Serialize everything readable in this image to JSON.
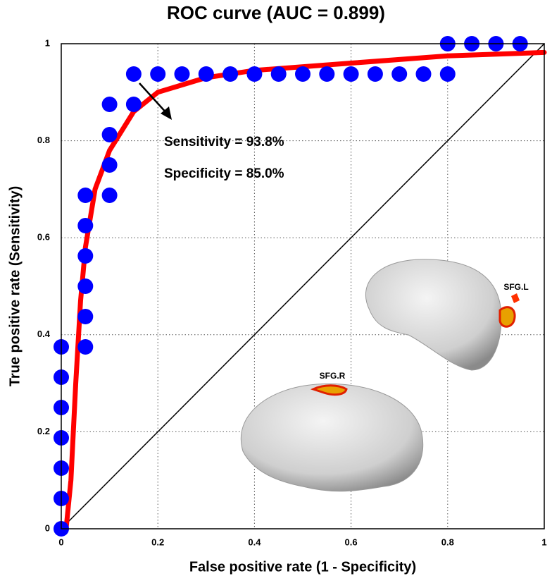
{
  "chart_data": {
    "type": "scatter",
    "title": "ROC curve (AUC = 0.899)",
    "x_label": "False positive rate (1 - Specificity)",
    "y_label": "True positive rate (Sensitivity)",
    "xlim": [
      0,
      1
    ],
    "ylim": [
      0,
      1
    ],
    "xticks": [
      0,
      0.2,
      0.4,
      0.6,
      0.8,
      1
    ],
    "yticks": [
      0,
      0.2,
      0.4,
      0.6,
      0.8,
      1
    ],
    "grid": true,
    "annotations": [
      "Sensitivity = 93.8%",
      "Specificity = 85.0%",
      "SFG.L",
      "SFG.R"
    ],
    "series": [
      {
        "type": "line",
        "color": "#000000",
        "x": [
          0,
          1
        ],
        "values": [
          0,
          1
        ]
      },
      {
        "type": "line",
        "color": "#ff0000",
        "x": [
          0.01,
          0.02,
          0.03,
          0.04,
          0.05,
          0.07,
          0.1,
          0.15,
          0.2,
          0.3,
          0.4,
          0.6,
          0.8,
          1
        ],
        "values": [
          0,
          0.1,
          0.3,
          0.47,
          0.58,
          0.7,
          0.78,
          0.86,
          0.9,
          0.93,
          0.945,
          0.96,
          0.975,
          0.982
        ]
      },
      {
        "type": "scatter",
        "color": "#0000ff",
        "x": [
          0,
          0,
          0,
          0,
          0,
          0,
          0,
          0.05,
          0.05,
          0.05,
          0.05,
          0.05,
          0.05,
          0.1,
          0.1,
          0.1,
          0.1,
          0.15,
          0.15,
          0.2,
          0.25,
          0.3,
          0.35,
          0.4,
          0.45,
          0.5,
          0.55,
          0.6,
          0.65,
          0.7,
          0.75,
          0.8,
          0.8,
          0.85,
          0.9,
          0.95
        ],
        "values": [
          0,
          0.0625,
          0.125,
          0.1875,
          0.25,
          0.3125,
          0.375,
          0.375,
          0.4375,
          0.5,
          0.5625,
          0.625,
          0.6875,
          0.6875,
          0.75,
          0.8125,
          0.875,
          0.875,
          0.9375,
          0.9375,
          0.9375,
          0.9375,
          0.9375,
          0.9375,
          0.9375,
          0.9375,
          0.9375,
          0.9375,
          0.9375,
          0.9375,
          0.9375,
          0.9375,
          1,
          1,
          1,
          1
        ]
      }
    ]
  }
}
